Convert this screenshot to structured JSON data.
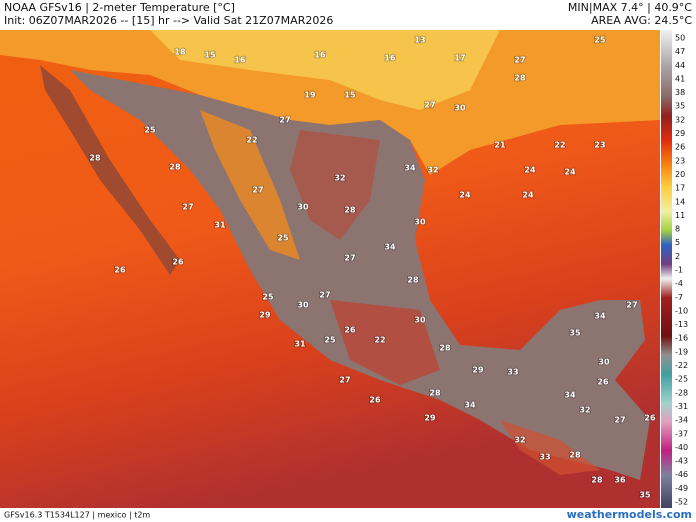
{
  "header": {
    "title": "NOAA GFSv16 | 2-meter Temperature [°C]",
    "init": "Init: 06Z07MAR2026 -- [15] hr --> Valid Sat 21Z07MAR2026",
    "minmax": "MIN|MAX 7.4° | 40.9°C",
    "avg": "AREA AVG: 24.5°C"
  },
  "colorbar": {
    "labels": [
      "50",
      "47",
      "44",
      "41",
      "38",
      "35",
      "32",
      "29",
      "26",
      "23",
      "20",
      "17",
      "14",
      "11",
      "8",
      "5",
      "2",
      "-1",
      "-4",
      "-7",
      "-10",
      "-13",
      "-16",
      "-19",
      "-22",
      "-25",
      "-28",
      "-31",
      "-34",
      "-37",
      "-40",
      "-43",
      "-46",
      "-49",
      "-52"
    ]
  },
  "map": {
    "labels": [
      "25",
      "28",
      "27",
      "31",
      "26",
      "27",
      "22",
      "25",
      "30",
      "32",
      "28",
      "34",
      "28",
      "27",
      "27",
      "30",
      "25",
      "29",
      "31",
      "25",
      "26",
      "22",
      "30",
      "28",
      "29",
      "33",
      "27",
      "26",
      "28",
      "34",
      "29",
      "35",
      "34",
      "27",
      "30",
      "26",
      "34",
      "32",
      "27",
      "26",
      "32",
      "33",
      "28",
      "28",
      "36",
      "35",
      "24",
      "24",
      "24",
      "24",
      "30",
      "34",
      "32",
      "26",
      "28",
      "27",
      "19",
      "15",
      "16",
      "15",
      "18",
      "16",
      "16",
      "13",
      "17",
      "27",
      "28",
      "25",
      "21",
      "22",
      "23",
      "27",
      "30"
    ]
  },
  "footer": {
    "model": "GFSv16.3 T1534L127 | mexico | t2m",
    "site": "weathermodels.com"
  }
}
